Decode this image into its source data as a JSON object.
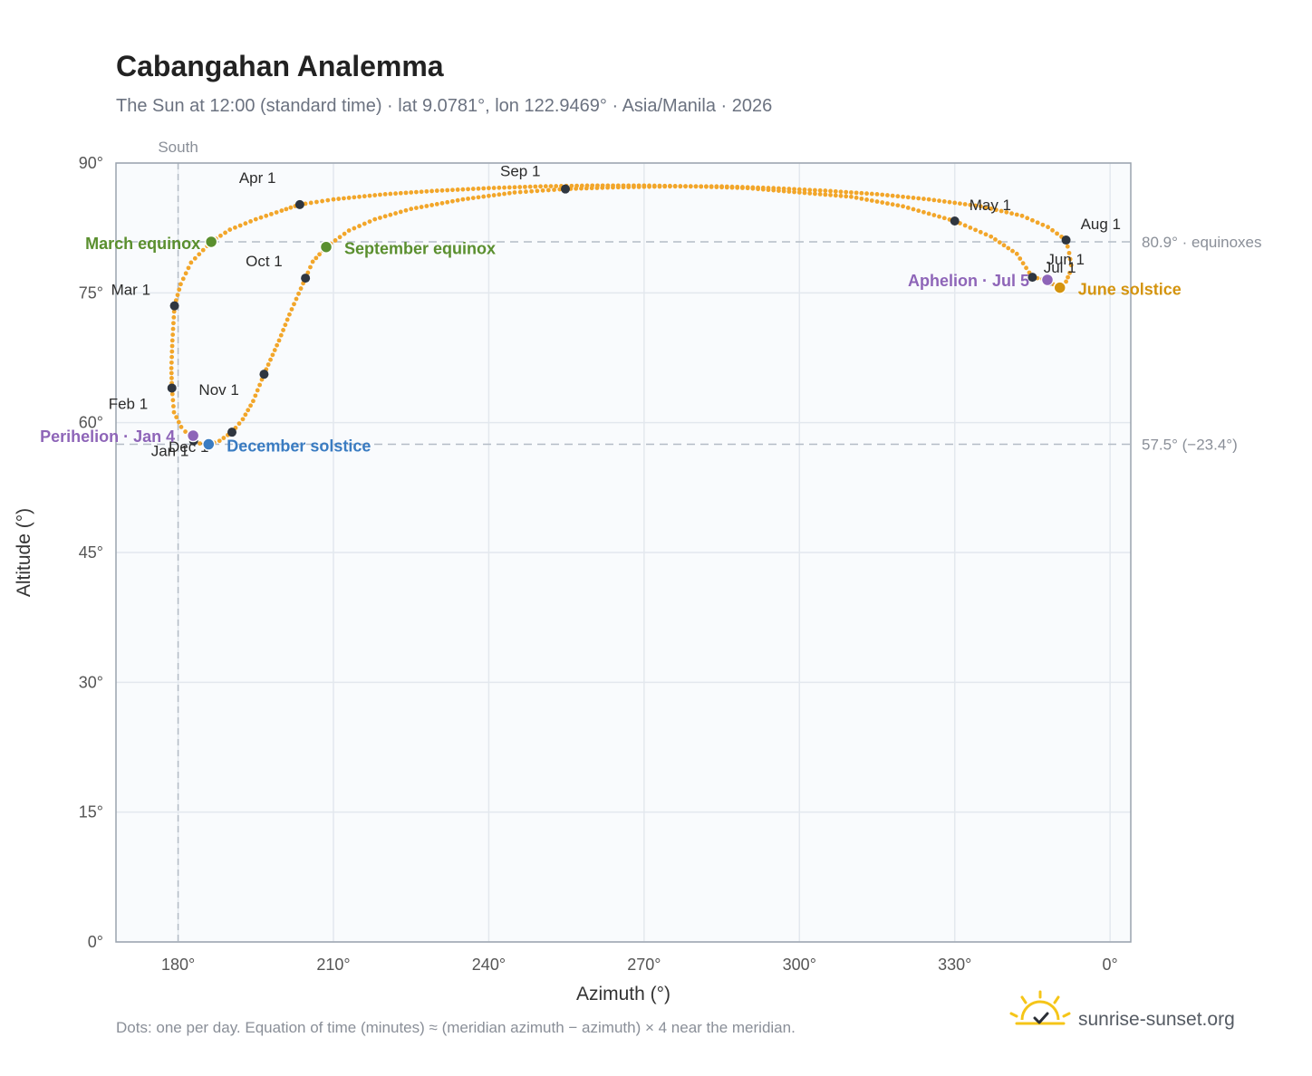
{
  "chart_data": {
    "type": "scatter",
    "title": "Cabangahan Analemma",
    "subtitle": "The Sun at 12:00 (standard time) · lat 9.0781°, lon 122.9469° · Asia/Manila · 2026",
    "xlabel": "Azimuth (°)",
    "ylabel": "Altitude (°)",
    "xlim": [
      168,
      4
    ],
    "ylim": [
      0,
      90
    ],
    "x_axis_reversed": true,
    "grid": true,
    "x_ticks": [
      {
        "value": 180,
        "label": "180°"
      },
      {
        "value": 210,
        "label": "210°"
      },
      {
        "value": 240,
        "label": "240°"
      },
      {
        "value": 270,
        "label": "270°"
      },
      {
        "value": 300,
        "label": "300°"
      },
      {
        "value": 330,
        "label": "330°"
      },
      {
        "value": 0,
        "label": "0°"
      }
    ],
    "y_ticks": [
      {
        "value": 0,
        "label": "0°"
      },
      {
        "value": 15,
        "label": "15°"
      },
      {
        "value": 30,
        "label": "30°"
      },
      {
        "value": 45,
        "label": "45°"
      },
      {
        "value": 60,
        "label": "60°"
      },
      {
        "value": 75,
        "label": "75°"
      },
      {
        "value": 90,
        "label": "90°"
      }
    ],
    "meridian": {
      "azimuth": 180,
      "label": "South"
    },
    "reference_lines": [
      {
        "altitude": 80.9,
        "label": "80.9° · equinoxes"
      },
      {
        "altitude": 57.5,
        "label": "57.5° (−23.4°)"
      }
    ],
    "curve_color": "#f2a62a",
    "month_markers": [
      {
        "label": "Jan 1",
        "azimuth": 183.0,
        "altitude": 57.9
      },
      {
        "label": "Feb 1",
        "azimuth": 178.8,
        "altitude": 64.0
      },
      {
        "label": "Mar 1",
        "azimuth": 179.3,
        "altitude": 73.5
      },
      {
        "label": "Apr 1",
        "azimuth": 203.5,
        "altitude": 85.2
      },
      {
        "label": "May 1",
        "azimuth": 330.0,
        "altitude": 83.3
      },
      {
        "label": "Jun 1",
        "azimuth": 345.0,
        "altitude": 76.8
      },
      {
        "label": "Jul 1",
        "azimuth": 348.2,
        "altitude": 76.3
      },
      {
        "label": "Aug 1",
        "azimuth": 351.5,
        "altitude": 81.1
      },
      {
        "label": "Sep 1",
        "azimuth": 254.8,
        "altitude": 87.0
      },
      {
        "label": "Oct 1",
        "azimuth": 204.6,
        "altitude": 76.7
      },
      {
        "label": "Nov 1",
        "azimuth": 196.6,
        "altitude": 65.6
      },
      {
        "label": "Dec 1",
        "azimuth": 190.4,
        "altitude": 58.9
      }
    ],
    "events": [
      {
        "label": "March equinox",
        "azimuth": 186.4,
        "altitude": 80.9,
        "color": "#5a8f2e"
      },
      {
        "label": "September equinox",
        "azimuth": 208.6,
        "altitude": 80.3,
        "color": "#5a8f2e"
      },
      {
        "label": "June solstice",
        "azimuth": 350.3,
        "altitude": 75.6,
        "color": "#d4940f"
      },
      {
        "label": "December solstice",
        "azimuth": 185.9,
        "altitude": 57.5,
        "color": "#3a7cc2"
      },
      {
        "label": "Perihelion · Jan 4",
        "azimuth": 182.9,
        "altitude": 58.5,
        "color": "#8e65b8"
      },
      {
        "label": "Aphelion · Jul 5",
        "azimuth": 347.9,
        "altitude": 76.5,
        "color": "#8e65b8"
      }
    ],
    "daily_path": [
      [
        183.0,
        57.9
      ],
      [
        180.6,
        59.5
      ],
      [
        179.2,
        61.2
      ],
      [
        178.8,
        64.0
      ],
      [
        178.7,
        66.3
      ],
      [
        178.9,
        69.5
      ],
      [
        179.3,
        73.5
      ],
      [
        180.5,
        76.0
      ],
      [
        182.5,
        78.5
      ],
      [
        186.4,
        80.9
      ],
      [
        190,
        82.3
      ],
      [
        195,
        83.5
      ],
      [
        200,
        84.5
      ],
      [
        203.5,
        85.2
      ],
      [
        210,
        85.8
      ],
      [
        220,
        86.4
      ],
      [
        230,
        86.8
      ],
      [
        240,
        87.1
      ],
      [
        250,
        87.3
      ],
      [
        260,
        87.4
      ],
      [
        270,
        87.4
      ],
      [
        280,
        87.3
      ],
      [
        290,
        87.1
      ],
      [
        300,
        86.6
      ],
      [
        310,
        86.1
      ],
      [
        320,
        85.0
      ],
      [
        330,
        83.3
      ],
      [
        337,
        81.5
      ],
      [
        342,
        79.5
      ],
      [
        345,
        76.8
      ],
      [
        347.9,
        76.5
      ],
      [
        349,
        76.0
      ],
      [
        350.3,
        75.6
      ],
      [
        351.5,
        76.3
      ],
      [
        352.2,
        77.3
      ],
      [
        352.5,
        78.2
      ],
      [
        352.1,
        79.6
      ],
      [
        351.5,
        81.1
      ],
      [
        348,
        82.6
      ],
      [
        343,
        83.9
      ],
      [
        335,
        85.0
      ],
      [
        325,
        85.8
      ],
      [
        315,
        86.4
      ],
      [
        305,
        86.8
      ],
      [
        295,
        87.1
      ],
      [
        285,
        87.3
      ],
      [
        275,
        87.3
      ],
      [
        265,
        87.2
      ],
      [
        254.8,
        87.0
      ],
      [
        245,
        86.6
      ],
      [
        235,
        85.8
      ],
      [
        225,
        84.7
      ],
      [
        218,
        83.5
      ],
      [
        213,
        82.2
      ],
      [
        208.6,
        80.3
      ],
      [
        206,
        78.6
      ],
      [
        204.6,
        76.7
      ],
      [
        201.5,
        72.5
      ],
      [
        199.5,
        69.5
      ],
      [
        196.6,
        65.6
      ],
      [
        194.5,
        62.5
      ],
      [
        192.5,
        60.4
      ],
      [
        190.4,
        58.9
      ],
      [
        188,
        57.9
      ],
      [
        185.9,
        57.5
      ],
      [
        184.2,
        57.6
      ],
      [
        183.0,
        57.9
      ]
    ],
    "footnote": "Dots: one per day. Equation of time (minutes) ≈ (meridian azimuth − azimuth) × 4 near the meridian."
  },
  "brand": {
    "logo_icon": "sun-logo-icon",
    "text": "sunrise-sunset.org"
  }
}
